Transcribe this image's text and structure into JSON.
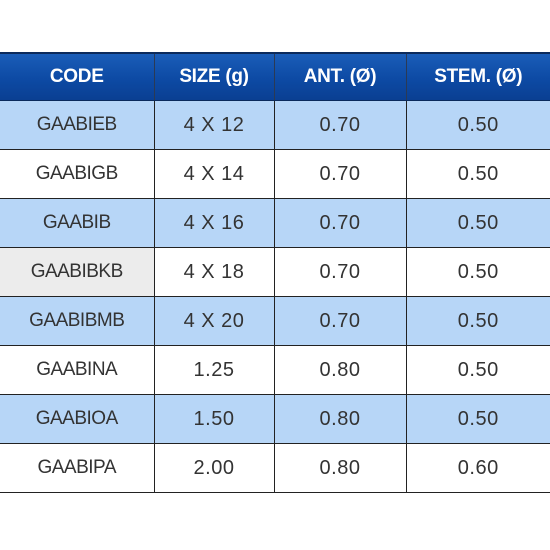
{
  "table": {
    "headers": [
      "CODE",
      "SIZE (g)",
      "ANT. (Ø)",
      "STEM. (Ø)"
    ],
    "rows": [
      {
        "code": "GAABIEB",
        "size": "4 X 12",
        "ant": "0.70",
        "stem": "0.50",
        "shade": "blue"
      },
      {
        "code": "GAABIGB",
        "size": "4 X 14",
        "ant": "0.70",
        "stem": "0.50",
        "shade": "white"
      },
      {
        "code": "GAABIB",
        "size": "4 X 16",
        "ant": "0.70",
        "stem": "0.50",
        "shade": "blue"
      },
      {
        "code": "GAABIBKB",
        "size": "4 X 18",
        "ant": "0.70",
        "stem": "0.50",
        "shade": "gray"
      },
      {
        "code": "GAABIBMB",
        "size": "4 X 20",
        "ant": "0.70",
        "stem": "0.50",
        "shade": "blue"
      },
      {
        "code": "GAABINA",
        "size": "1.25",
        "ant": "0.80",
        "stem": "0.50",
        "shade": "white"
      },
      {
        "code": "GAABIOA",
        "size": "1.50",
        "ant": "0.80",
        "stem": "0.50",
        "shade": "blue"
      },
      {
        "code": "GAABIPA",
        "size": "2.00",
        "ant": "0.80",
        "stem": "0.60",
        "shade": "white"
      }
    ]
  },
  "colors": {
    "header_bg": "#0d4aa4",
    "header_text": "#ffffff",
    "row_blue": "#b7d6f7",
    "row_gray": "#ececec",
    "row_white": "#ffffff",
    "border": "#222222"
  }
}
